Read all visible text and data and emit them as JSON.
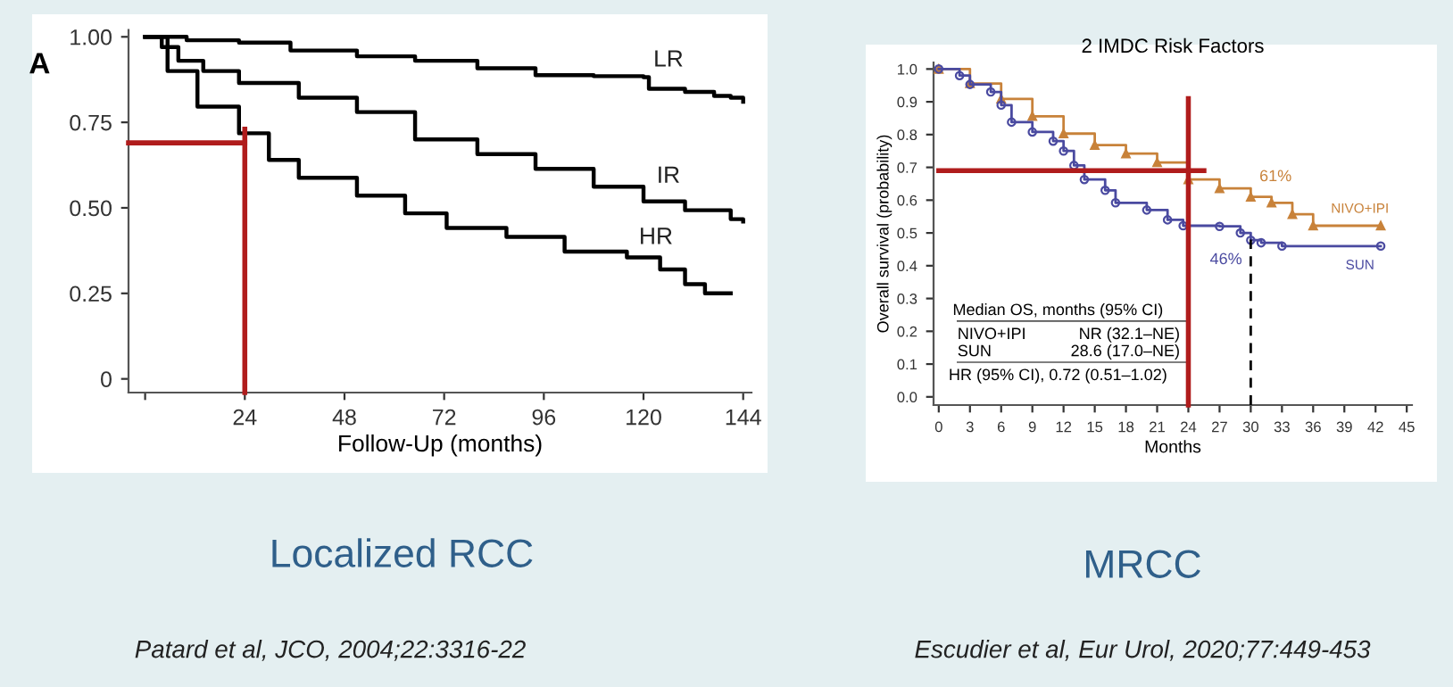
{
  "chart_data": [
    {
      "type": "step",
      "title": "A",
      "xlabel": "Follow-Up (months)",
      "xlim": [
        -4,
        146
      ],
      "xticks": [
        {
          "value": 0,
          "label": null
        },
        24,
        48,
        72,
        96,
        120,
        144
      ],
      "ylim": [
        -0.04,
        1.02
      ],
      "yticks": [
        {
          "value": 0,
          "label": "0"
        },
        0.25,
        {
          "value": 0.5,
          "label": "0.50"
        },
        0.75,
        {
          "value": 1,
          "label": "1.00"
        }
      ],
      "grid": false,
      "legend": false,
      "series": [
        {
          "name": "LR",
          "color": "#000000",
          "x": [
            0,
            10,
            22.6,
            35,
            51,
            65,
            80,
            94,
            108,
            120,
            121.3,
            130,
            137,
            141,
            144
          ],
          "values": [
            1.0,
            0.99,
            0.983,
            0.96,
            0.943,
            0.93,
            0.908,
            0.888,
            0.885,
            0.882,
            0.848,
            0.839,
            0.827,
            0.822,
            0.81
          ]
        },
        {
          "name": "IR",
          "color": "#000000",
          "x": [
            0,
            4,
            8,
            14,
            22.6,
            37,
            51,
            65,
            80,
            94,
            108,
            120,
            130,
            141,
            144
          ],
          "values": [
            1.0,
            0.97,
            0.93,
            0.9,
            0.865,
            0.822,
            0.78,
            0.7,
            0.657,
            0.614,
            0.562,
            0.519,
            0.493,
            0.467,
            0.46
          ]
        },
        {
          "name": "HR",
          "color": "#000000",
          "x": [
            0,
            5.4,
            12.6,
            22.6,
            29.8,
            37,
            51,
            62.6,
            72.6,
            87,
            101,
            116,
            124,
            130,
            134.8,
            141
          ],
          "values": [
            1.0,
            0.9,
            0.796,
            0.718,
            0.64,
            0.588,
            0.536,
            0.484,
            0.441,
            0.415,
            0.372,
            0.355,
            0.32,
            0.277,
            0.25,
            0.25
          ]
        },
        {
          "type": "line",
          "color": "#b01c1c",
          "x": [
            -4,
            24
          ],
          "values": [
            0.69,
            0.69
          ]
        },
        {
          "type": "line",
          "color": "#b01c1c",
          "x": [
            24,
            24
          ],
          "values": [
            -0.04,
            0.73
          ]
        }
      ],
      "annotations": [
        "Localized RCC",
        "Patard et al, JCO, 2004;22:3316-22"
      ]
    },
    {
      "type": "step",
      "title": "2 IMDC Risk Factors",
      "xlabel": "Months",
      "ylabel": "Overall survival (probability)",
      "xlim": [
        -0.5,
        45.5
      ],
      "xticks": [
        0,
        3,
        6,
        9,
        12,
        15,
        18,
        21,
        24,
        27,
        30,
        33,
        36,
        39,
        42,
        45
      ],
      "ylim": [
        -0.025,
        1.02
      ],
      "yticks": [
        {
          "value": 0,
          "label": "0.0"
        },
        0.1,
        0.2,
        0.3,
        0.4,
        0.5,
        0.6,
        0.7,
        0.8,
        0.9,
        {
          "value": 1,
          "label": "1.0"
        }
      ],
      "grid": false,
      "legend": false,
      "series": [
        {
          "name": "NIVO+IPI",
          "color": "#c8823a",
          "marker": "triangle",
          "x": [
            0,
            3,
            6,
            9,
            12,
            15,
            18,
            21,
            24,
            27,
            30,
            32,
            34,
            36,
            42.5
          ],
          "values": [
            1.0,
            0.956,
            0.909,
            0.856,
            0.803,
            0.768,
            0.742,
            0.715,
            0.663,
            0.636,
            0.61,
            0.592,
            0.557,
            0.522,
            0.522
          ]
        },
        {
          "name": "SUN",
          "color": "#4a4aa0",
          "marker": "circle",
          "x": [
            0,
            2,
            3,
            5,
            6,
            7,
            9,
            11,
            12,
            13,
            14,
            16,
            17,
            20,
            22,
            23.5,
            27,
            29,
            30,
            31,
            33,
            42.5
          ],
          "values": [
            1.0,
            0.98,
            0.953,
            0.93,
            0.89,
            0.838,
            0.808,
            0.78,
            0.75,
            0.706,
            0.663,
            0.63,
            0.592,
            0.57,
            0.54,
            0.522,
            0.52,
            0.5,
            0.478,
            0.47,
            0.46,
            0.46
          ]
        },
        {
          "type": "line",
          "color": "#b01c1c",
          "x": [
            0,
            25.5
          ],
          "values": [
            0.69,
            0.69
          ]
        },
        {
          "type": "line",
          "color": "#b01c1c",
          "x": [
            24,
            24
          ],
          "values": [
            -0.025,
            0.91
          ]
        },
        {
          "type": "line",
          "color": "#000000",
          "line_style": "dashed",
          "x": [
            30,
            30
          ],
          "values": [
            -0.025,
            0.48
          ]
        }
      ],
      "annotations": [
        {
          "text": "61%",
          "x": 30,
          "y": 0.61
        },
        {
          "text": "46%",
          "x": 30,
          "y": 0.478
        },
        "Median OS, months (95% CI)",
        "NIVO+IPI",
        "NR (32.1–NE)",
        "SUN",
        "28.6 (17.0–NE)",
        "HR (95% CI), 0.72 (0.51–1.02)",
        "MRCC",
        "Escudier et al, Eur Urol, 2020;77:449-453"
      ]
    }
  ]
}
